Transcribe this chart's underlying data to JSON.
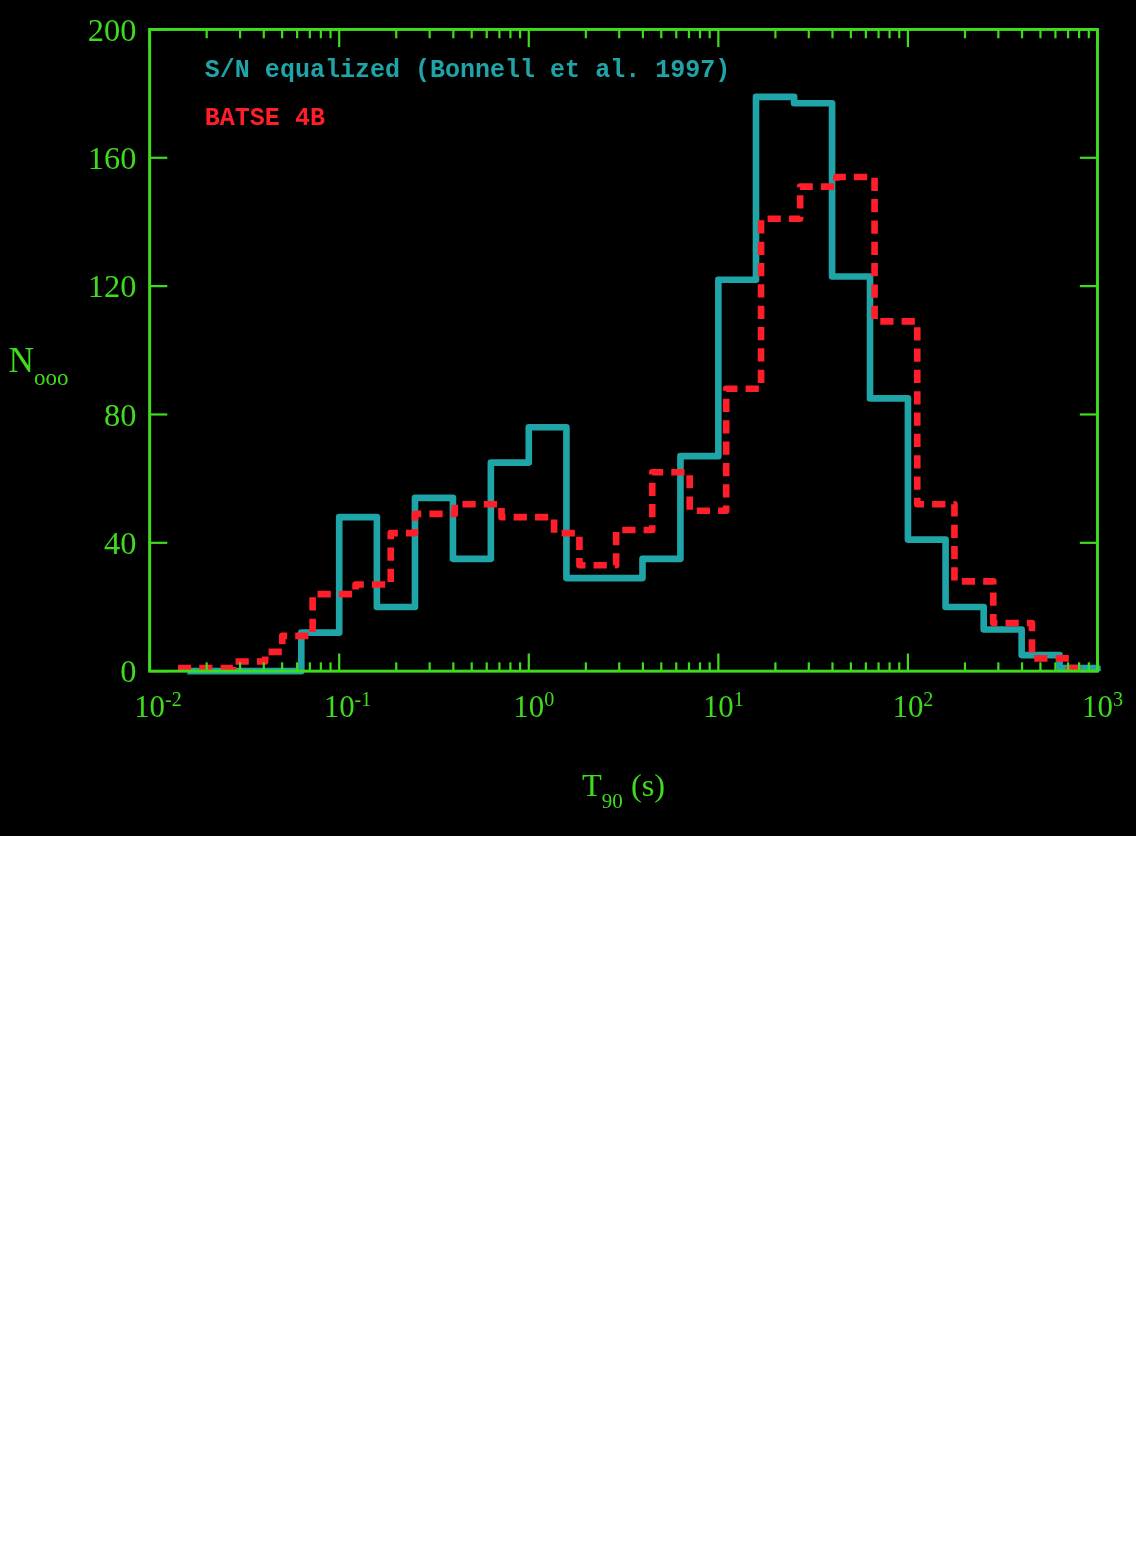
{
  "chart_data": {
    "type": "step",
    "xlabel": "T$_{90}$ (s)",
    "ylabel": "N$_{ooo}$",
    "log": "x",
    "legend": "top left",
    "grid": false,
    "xlim": [
      0.01,
      1000
    ],
    "ylim": [
      0,
      200
    ],
    "xticks": [
      {
        "value": 0.01,
        "label": "10$^{-2}$"
      },
      {
        "value": 0.02,
        "label": null
      },
      {
        "value": 0.03,
        "label": null
      },
      {
        "value": 0.04,
        "label": null
      },
      {
        "value": 0.05,
        "label": null
      },
      {
        "value": 0.06,
        "label": null
      },
      {
        "value": 0.07,
        "label": null
      },
      {
        "value": 0.08,
        "label": null
      },
      {
        "value": 0.09,
        "label": null
      },
      {
        "value": 0.1,
        "label": "10$^{-1}$"
      },
      {
        "value": 0.2,
        "label": null
      },
      {
        "value": 0.3,
        "label": null
      },
      {
        "value": 0.4,
        "label": null
      },
      {
        "value": 0.5,
        "label": null
      },
      {
        "value": 0.6,
        "label": null
      },
      {
        "value": 0.7,
        "label": null
      },
      {
        "value": 0.8,
        "label": null
      },
      {
        "value": 0.9,
        "label": null
      },
      {
        "value": 1,
        "label": "10$^{0}$"
      },
      {
        "value": 2,
        "label": null
      },
      {
        "value": 3,
        "label": null
      },
      {
        "value": 4,
        "label": null
      },
      {
        "value": 5,
        "label": null
      },
      {
        "value": 6,
        "label": null
      },
      {
        "value": 7,
        "label": null
      },
      {
        "value": 8,
        "label": null
      },
      {
        "value": 9,
        "label": null
      },
      {
        "value": 10,
        "label": "10$^{1}$"
      },
      {
        "value": 20,
        "label": null
      },
      {
        "value": 30,
        "label": null
      },
      {
        "value": 40,
        "label": null
      },
      {
        "value": 50,
        "label": null
      },
      {
        "value": 60,
        "label": null
      },
      {
        "value": 70,
        "label": null
      },
      {
        "value": 80,
        "label": null
      },
      {
        "value": 90,
        "label": null
      },
      {
        "value": 100,
        "label": "10$^{2}$"
      },
      {
        "value": 200,
        "label": null
      },
      {
        "value": 300,
        "label": null
      },
      {
        "value": 400,
        "label": null
      },
      {
        "value": 500,
        "label": null
      },
      {
        "value": 600,
        "label": null
      },
      {
        "value": 700,
        "label": null
      },
      {
        "value": 800,
        "label": null
      },
      {
        "value": 900,
        "label": null
      },
      {
        "value": 1000,
        "label": "10$^{3}$"
      }
    ],
    "yticks": [
      0,
      40,
      80,
      120,
      160,
      200
    ],
    "series": [
      {
        "name": "S/N equalized (Bonnell et al. 1997)",
        "color": "#1fa5a8",
        "line_style": "solid",
        "x": [
          0.0158,
          0.0251,
          0.0398,
          0.0631,
          0.1,
          0.158,
          0.251,
          0.398,
          0.631,
          1,
          1.58,
          2.51,
          3.98,
          6.31,
          10,
          15.8,
          25.1,
          39.8,
          63.1,
          100,
          158,
          251,
          398,
          631,
          1000
        ],
        "values": [
          0,
          0,
          0,
          12,
          48,
          20,
          54,
          35,
          65,
          76,
          29,
          29,
          35,
          67,
          122,
          179,
          177,
          123,
          85,
          41,
          20,
          13,
          5,
          1,
          0
        ]
      },
      {
        "name": "BATSE 4B",
        "color": "#ff1e2a",
        "line_style": "dashed",
        "x": [
          0.0141,
          0.0275,
          0.0407,
          0.0501,
          0.0724,
          0.122,
          0.187,
          0.251,
          0.407,
          0.718,
          1.36,
          1.85,
          2.89,
          4.48,
          7.06,
          11.0,
          16.8,
          27.0,
          41.9,
          66.7,
          112,
          176,
          282,
          451,
          706,
          832
        ],
        "values": [
          1,
          3,
          6,
          11,
          24,
          27,
          43,
          49,
          52,
          48,
          43,
          33,
          44,
          62,
          50,
          88,
          141,
          151,
          154,
          109,
          52,
          28,
          15,
          4,
          1,
          0
        ]
      }
    ]
  }
}
